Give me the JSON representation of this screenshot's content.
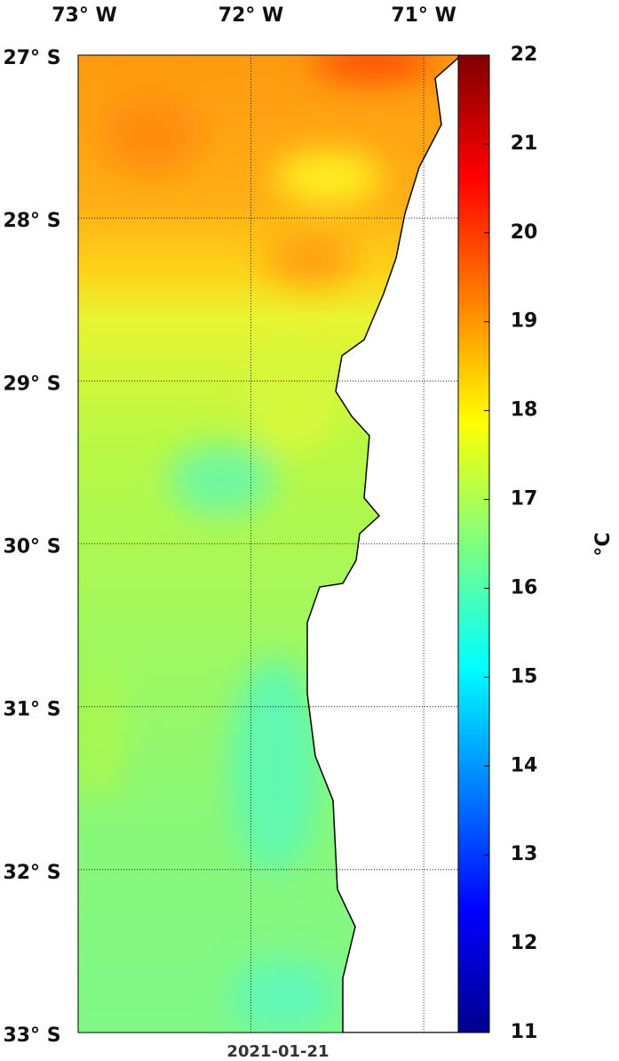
{
  "map": {
    "lon_lim": [
      -73,
      -70.8
    ],
    "lat_lim": [
      -33,
      -27
    ],
    "lon_ticks": [
      {
        "value": -73,
        "label": "73° W"
      },
      {
        "value": -72,
        "label": "72° W"
      },
      {
        "value": -71,
        "label": "71° W"
      }
    ],
    "lat_ticks": [
      {
        "value": -27,
        "label": "27° S"
      },
      {
        "value": -28,
        "label": "28° S"
      },
      {
        "value": -29,
        "label": "29° S"
      },
      {
        "value": -30,
        "label": "30° S"
      },
      {
        "value": -31,
        "label": "31° S"
      },
      {
        "value": -32,
        "label": "32° S"
      },
      {
        "value": -33,
        "label": "33° S"
      }
    ],
    "colorbar": {
      "lim": [
        11,
        22
      ],
      "ticks": [
        11,
        12,
        13,
        14,
        15,
        16,
        17,
        18,
        19,
        20,
        21,
        22
      ],
      "label": "°C"
    },
    "date": "2021-01-21"
  }
}
